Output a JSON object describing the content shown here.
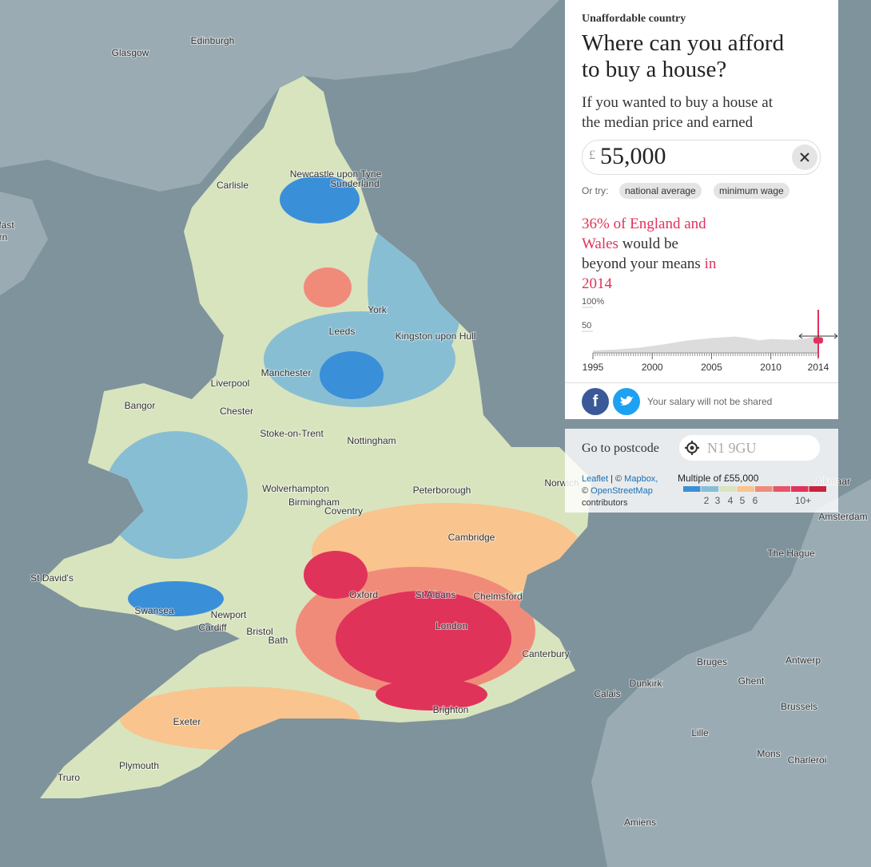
{
  "map": {
    "labels": [
      "Glasgow",
      "Edinburgh",
      "fast",
      "rn",
      "Newcastle upon Tyne",
      "Sunderland",
      "Carlisle",
      "York",
      "Leeds",
      "Kingston upon Hull",
      "Manchester",
      "Liverpool",
      "Bangor",
      "Chester",
      "Stoke-on-Trent",
      "Nottingham",
      "Norwich",
      "Peterborough",
      "Wolverhampton",
      "Birmingham",
      "Coventry",
      "Cambridge",
      "St David's",
      "Oxford",
      "St Albans",
      "Chelmsford",
      "Swansea",
      "Newport",
      "Cardiff",
      "Bristol",
      "London",
      "Bath",
      "Canterbury",
      "Exeter",
      "Brighton",
      "Plymouth",
      "Truro",
      "Alkmaar",
      "Amsterdam",
      "The Hague",
      "Bruges",
      "Antwerp",
      "Ghent",
      "Dunkirk",
      "Calais",
      "Brussels",
      "Lille",
      "Mons",
      "Charleroi",
      "Amiens"
    ]
  },
  "panel": {
    "kicker": "Unaffordable country",
    "title_lines": [
      "Where can you afford",
      "to buy a house?"
    ],
    "intro_lines": [
      "If you wanted to buy a house at",
      "the median price and earned"
    ],
    "currency": "£",
    "salary": "55,000",
    "or_try": "Or try:",
    "chips": [
      "national average",
      "minimum wage"
    ],
    "result_lines": [
      [
        {
          "text": "36% of England and",
          "highlight": true
        }
      ],
      [
        {
          "text": "Wales",
          "highlight": true
        },
        {
          "text": " would be",
          "highlight": false
        }
      ],
      [
        {
          "text": "beyond your means ",
          "highlight": false
        },
        {
          "text": "in",
          "highlight": true
        }
      ],
      [
        {
          "text": "2014",
          "highlight": true
        }
      ]
    ],
    "share_note": "Your salary will not be shared"
  },
  "trend": {
    "x": [
      1995,
      1997,
      1999,
      2001,
      2003,
      2005,
      2007,
      2008,
      2009,
      2010,
      2011,
      2012,
      2013,
      2014
    ],
    "values": [
      5,
      7,
      11,
      18,
      26,
      31,
      34,
      31,
      26,
      29,
      28,
      27,
      30,
      36
    ],
    "xlim": [
      1995,
      2014
    ],
    "ylim": [
      0,
      100
    ],
    "xticks": [
      1995,
      2000,
      2005,
      2010,
      2014
    ],
    "yticks": [
      {
        "value": 100,
        "label": "100%"
      },
      50
    ],
    "color": "#dcdcdc"
  },
  "postcode": {
    "label": "Go to postcode",
    "placeholder": "N1 9GU"
  },
  "attribution": {
    "leaflet": "Leaflet",
    "sep": " | © ",
    "mapbox": "Mapbox,",
    "copy": "© ",
    "osm": "OpenStreetMap",
    "contributors": "contributors"
  },
  "legend": {
    "title": "Multiple of £55,000",
    "colors": [
      "#3a8fd9",
      "#88bed3",
      "#d8e4be",
      "#f9c48d",
      "#f08b7a",
      "#e8546a",
      "#e0335a",
      "#c8243f"
    ],
    "labels": [
      "2",
      "3",
      "4",
      "5",
      "6",
      "10+"
    ]
  }
}
